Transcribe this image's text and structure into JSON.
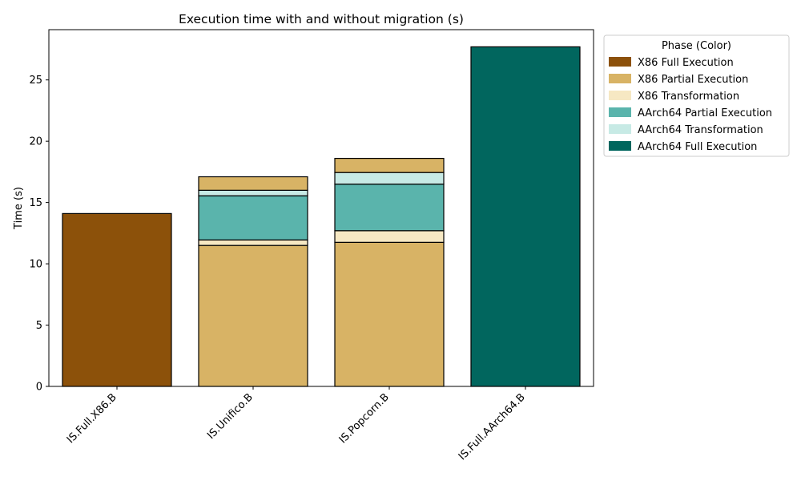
{
  "chart_data": {
    "type": "bar",
    "stacked": true,
    "title": "Execution time with and without migration (s)",
    "xlabel": "",
    "ylabel": "Time (s)",
    "ylim": [
      0,
      29.1
    ],
    "yticks": [
      0,
      5,
      10,
      15,
      20,
      25
    ],
    "grid": false,
    "legend": {
      "title": "Phase (Color)",
      "placement": "outside-top-right",
      "entries": [
        {
          "label": "X86 Full Execution",
          "color": "#8c510a"
        },
        {
          "label": "X86 Partial Execution",
          "color": "#d8b365"
        },
        {
          "label": "X86 Transformation",
          "color": "#f6e8c3"
        },
        {
          "label": "AArch64 Partial Execution",
          "color": "#5ab4ac"
        },
        {
          "label": "AArch64 Transformation",
          "color": "#c7eae5"
        },
        {
          "label": "AArch64 Full Execution",
          "color": "#01665e"
        }
      ]
    },
    "categories": [
      "IS.Full.X86.B",
      "IS.Unifico.B",
      "IS.Popcorn.B",
      "IS.Full.AArch64.B"
    ],
    "stacks": [
      {
        "category": "IS.Full.X86.B",
        "segments": [
          {
            "phase": "X86 Full Execution",
            "value": 14.1,
            "color": "#8c510a"
          }
        ]
      },
      {
        "category": "IS.Unifico.B",
        "segments": [
          {
            "phase": "X86 Partial Execution",
            "value": 11.5,
            "color": "#d8b365"
          },
          {
            "phase": "X86 Transformation",
            "value": 0.45,
            "color": "#f6e8c3"
          },
          {
            "phase": "AArch64 Partial Execution",
            "value": 3.6,
            "color": "#5ab4ac"
          },
          {
            "phase": "AArch64 Transformation",
            "value": 0.45,
            "color": "#c7eae5"
          },
          {
            "phase": "X86 Partial Execution",
            "value": 1.1,
            "color": "#d8b365"
          }
        ]
      },
      {
        "category": "IS.Popcorn.B",
        "segments": [
          {
            "phase": "X86 Partial Execution",
            "value": 11.75,
            "color": "#d8b365"
          },
          {
            "phase": "X86 Transformation",
            "value": 0.95,
            "color": "#f6e8c3"
          },
          {
            "phase": "AArch64 Partial Execution",
            "value": 3.8,
            "color": "#5ab4ac"
          },
          {
            "phase": "AArch64 Transformation",
            "value": 0.95,
            "color": "#c7eae5"
          },
          {
            "phase": "X86 Partial Execution",
            "value": 1.15,
            "color": "#d8b365"
          }
        ]
      },
      {
        "category": "IS.Full.AArch64.B",
        "segments": [
          {
            "phase": "AArch64 Full Execution",
            "value": 27.7,
            "color": "#01665e"
          }
        ]
      }
    ]
  }
}
